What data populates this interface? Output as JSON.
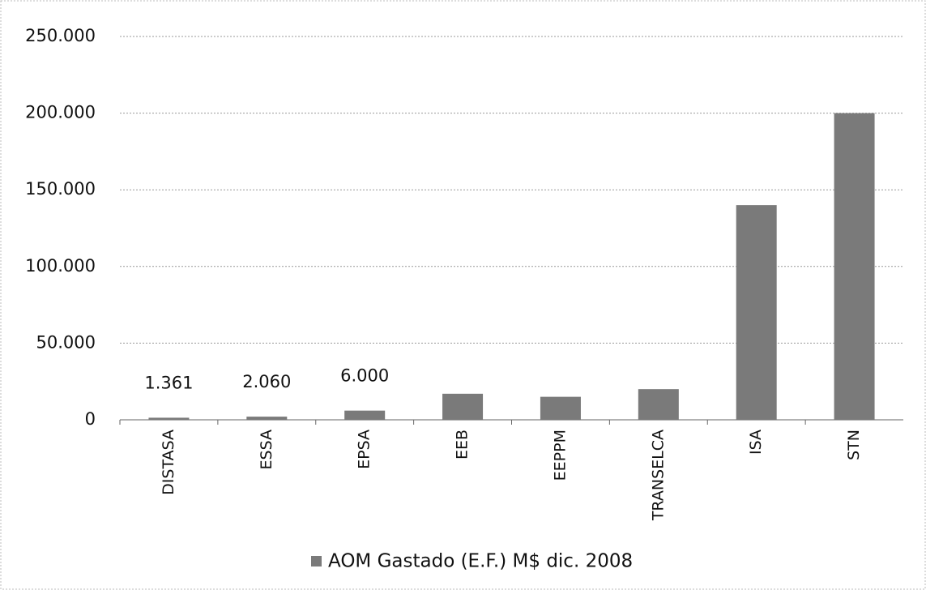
{
  "chart_data": {
    "type": "bar",
    "categories": [
      "DISTASA",
      "ESSA",
      "EPSA",
      "EEB",
      "EEPPM",
      "TRANSELCA",
      "ISA",
      "STN"
    ],
    "series": [
      {
        "name": "AOM Gastado (E.F.) M$ dic. 2008",
        "color": "#7a7a7a",
        "values": [
          1361,
          2060,
          6000,
          17000,
          15000,
          20000,
          140000,
          200000
        ],
        "value_labels": [
          "1.361",
          "2.060",
          "6.000",
          null,
          null,
          null,
          null,
          null
        ]
      }
    ],
    "ylim": [
      0,
      250000
    ],
    "yticks": [
      0,
      {
        "value": 50000,
        "label": "50.000"
      },
      {
        "value": 100000,
        "label": "100.000"
      },
      {
        "value": 150000,
        "label": "150.000"
      },
      {
        "value": 200000,
        "label": "200.000"
      },
      {
        "value": 250000,
        "label": "250.000"
      }
    ],
    "grid": true,
    "legend": "bottom"
  }
}
